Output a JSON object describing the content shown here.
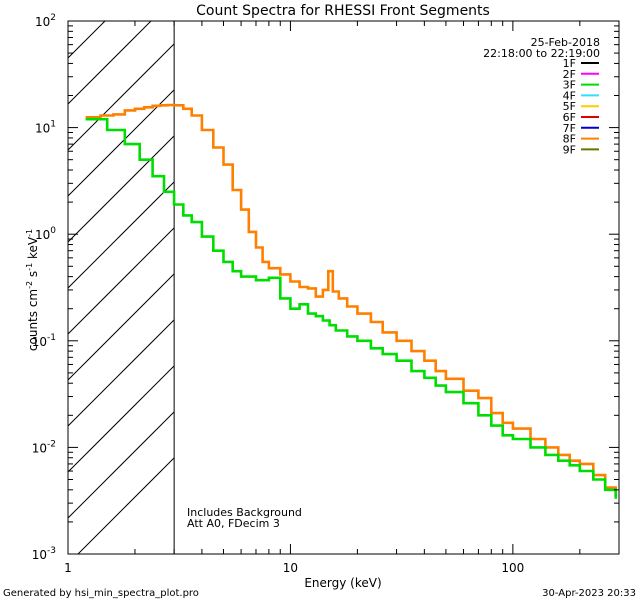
{
  "chart_data": {
    "type": "line",
    "title": "Count Spectra for RHESSI Front Segments",
    "xlabel": "Energy (keV)",
    "ylabel_base": "counts cm",
    "ylabel_exp1": "-2",
    "ylabel_mid": " s",
    "ylabel_exp2": "-1",
    "ylabel_end": " keV",
    "ylabel_exp3": "-1",
    "x_scale": "log",
    "y_scale": "log",
    "xlim": [
      1,
      300
    ],
    "ylim": [
      0.001,
      100
    ],
    "x_ticks": [
      {
        "value": 1,
        "label": "1"
      },
      {
        "value": 10,
        "label": "10"
      },
      {
        "value": 100,
        "label": "100"
      }
    ],
    "y_ticks": [
      {
        "value": 0.001,
        "base": "10",
        "exp": "-3"
      },
      {
        "value": 0.01,
        "base": "10",
        "exp": "-2"
      },
      {
        "value": 0.1,
        "base": "10",
        "exp": "-1"
      },
      {
        "value": 1,
        "base": "10",
        "exp": "0"
      },
      {
        "value": 10,
        "base": "10",
        "exp": "1"
      },
      {
        "value": 100,
        "base": "10",
        "exp": "2"
      }
    ],
    "excluded_region_xmax": 3,
    "date_text": "25-Feb-2018",
    "time_range_text": "22:18:00 to 22:19:00",
    "annotations": [
      "Includes Background",
      "Att A0, FDecim 3"
    ],
    "legend": [
      {
        "label": "1F",
        "color": "#000000"
      },
      {
        "label": "2F",
        "color": "#ff00ff"
      },
      {
        "label": "3F",
        "color": "#00dd00"
      },
      {
        "label": "4F",
        "color": "#33ddff"
      },
      {
        "label": "5F",
        "color": "#ffcc00"
      },
      {
        "label": "6F",
        "color": "#dd0000"
      },
      {
        "label": "7F",
        "color": "#0000cc"
      },
      {
        "label": "8F",
        "color": "#ff8000"
      },
      {
        "label": "9F",
        "color": "#667700"
      }
    ],
    "series": [
      {
        "name": "8F",
        "color": "#ff8000",
        "points": [
          [
            1.2,
            12.5
          ],
          [
            1.4,
            13.0
          ],
          [
            1.6,
            13.3
          ],
          [
            1.8,
            14.5
          ],
          [
            2.0,
            15.0
          ],
          [
            2.2,
            15.5
          ],
          [
            2.4,
            16.0
          ],
          [
            2.6,
            16.2
          ],
          [
            2.8,
            16.3
          ],
          [
            3.0,
            16.2
          ],
          [
            3.3,
            15.0
          ],
          [
            3.6,
            13.0
          ],
          [
            4.0,
            9.5
          ],
          [
            4.5,
            6.5
          ],
          [
            5.0,
            4.5
          ],
          [
            5.5,
            2.6
          ],
          [
            6.0,
            1.7
          ],
          [
            6.5,
            1.05
          ],
          [
            7.0,
            0.75
          ],
          [
            7.5,
            0.55
          ],
          [
            8.0,
            0.48
          ],
          [
            9.0,
            0.42
          ],
          [
            10.0,
            0.36
          ],
          [
            11.0,
            0.32
          ],
          [
            12.0,
            0.31
          ],
          [
            13.0,
            0.26
          ],
          [
            14.0,
            0.3
          ],
          [
            14.8,
            0.45
          ],
          [
            15.5,
            0.29
          ],
          [
            16.5,
            0.25
          ],
          [
            18.0,
            0.21
          ],
          [
            20.0,
            0.18
          ],
          [
            23.0,
            0.15
          ],
          [
            26.0,
            0.12
          ],
          [
            30.0,
            0.1
          ],
          [
            35.0,
            0.08
          ],
          [
            40.0,
            0.065
          ],
          [
            45.0,
            0.052
          ],
          [
            50.0,
            0.044
          ],
          [
            60.0,
            0.034
          ],
          [
            70.0,
            0.029
          ],
          [
            80.0,
            0.021
          ],
          [
            90.0,
            0.017
          ],
          [
            100.0,
            0.015
          ],
          [
            120.0,
            0.012
          ],
          [
            140.0,
            0.01
          ],
          [
            160.0,
            0.0085
          ],
          [
            180.0,
            0.0075
          ],
          [
            200.0,
            0.007
          ],
          [
            230.0,
            0.0055
          ],
          [
            260.0,
            0.0042
          ],
          [
            290.0,
            0.0035
          ]
        ]
      },
      {
        "name": "3F",
        "color": "#00dd00",
        "points": [
          [
            1.2,
            12.0
          ],
          [
            1.5,
            9.5
          ],
          [
            1.8,
            7.0
          ],
          [
            2.1,
            5.0
          ],
          [
            2.4,
            3.5
          ],
          [
            2.7,
            2.5
          ],
          [
            3.0,
            1.9
          ],
          [
            3.3,
            1.5
          ],
          [
            3.6,
            1.3
          ],
          [
            4.0,
            0.95
          ],
          [
            4.5,
            0.7
          ],
          [
            5.0,
            0.55
          ],
          [
            5.5,
            0.45
          ],
          [
            6.0,
            0.4
          ],
          [
            7.0,
            0.37
          ],
          [
            8.0,
            0.39
          ],
          [
            9.0,
            0.25
          ],
          [
            10.0,
            0.2
          ],
          [
            11.0,
            0.22
          ],
          [
            12.0,
            0.18
          ],
          [
            13.0,
            0.17
          ],
          [
            14.0,
            0.155
          ],
          [
            15.0,
            0.14
          ],
          [
            16.0,
            0.125
          ],
          [
            18.0,
            0.11
          ],
          [
            20.0,
            0.1
          ],
          [
            23.0,
            0.085
          ],
          [
            26.0,
            0.075
          ],
          [
            30.0,
            0.065
          ],
          [
            35.0,
            0.052
          ],
          [
            40.0,
            0.045
          ],
          [
            45.0,
            0.038
          ],
          [
            50.0,
            0.033
          ],
          [
            60.0,
            0.026
          ],
          [
            70.0,
            0.02
          ],
          [
            80.0,
            0.016
          ],
          [
            90.0,
            0.013
          ],
          [
            100.0,
            0.012
          ],
          [
            120.0,
            0.01
          ],
          [
            140.0,
            0.0085
          ],
          [
            160.0,
            0.0075
          ],
          [
            180.0,
            0.0068
          ],
          [
            200.0,
            0.006
          ],
          [
            230.0,
            0.005
          ],
          [
            260.0,
            0.004
          ],
          [
            290.0,
            0.0033
          ]
        ]
      }
    ]
  },
  "footer": {
    "generated_by": "Generated by hsi_min_spectra_plot.pro",
    "timestamp": "30-Apr-2023 20:33"
  }
}
